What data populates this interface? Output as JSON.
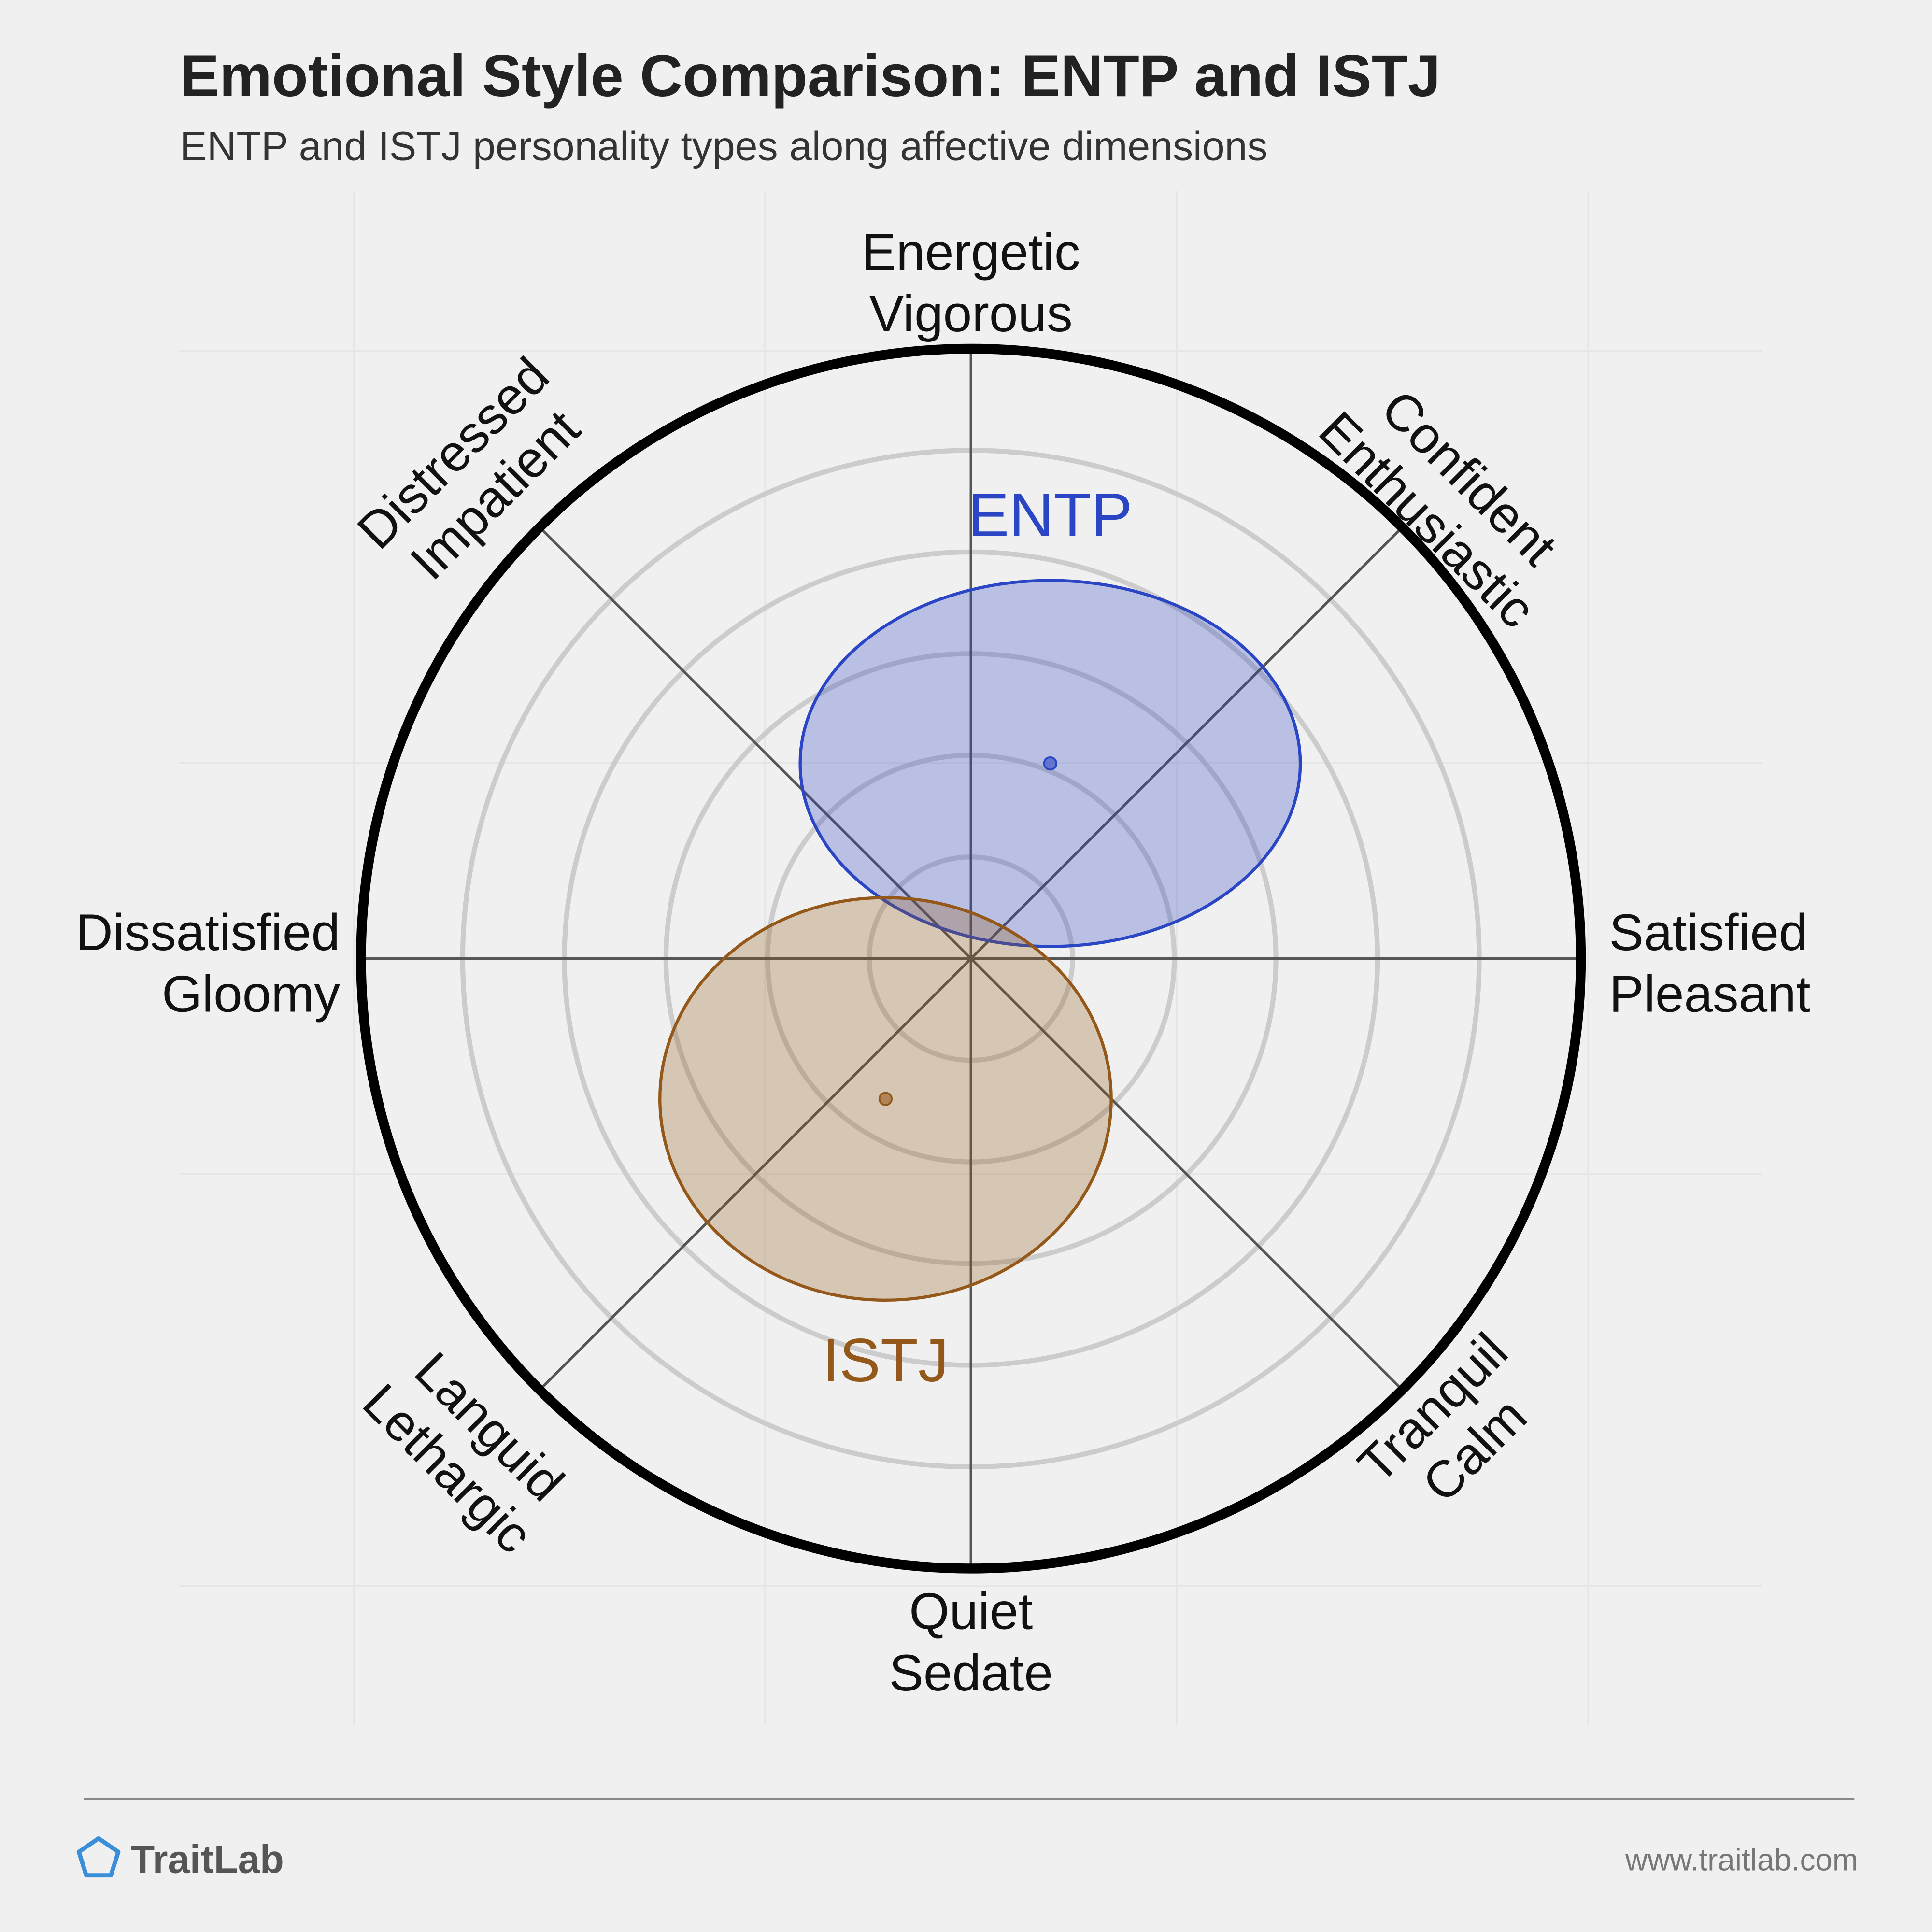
{
  "chart_data": {
    "type": "circumplex",
    "title": "Emotional Style Comparison: ENTP and ISTJ",
    "subtitle": "ENTP and ISTJ personality types along affective dimensions",
    "axis_labels": [
      [
        "Energetic",
        "Vigorous"
      ],
      [
        "Confident",
        "Enthusiastic"
      ],
      [
        "Satisfied",
        "Pleasant"
      ],
      [
        "Tranquil",
        "Calm"
      ],
      [
        "Quiet",
        "Sedate"
      ],
      [
        "Languid",
        "Lethargic"
      ],
      [
        "Dissatisfied",
        "Gloomy"
      ],
      [
        "Distressed",
        "Impatient"
      ]
    ],
    "xlim": [
      -1,
      1
    ],
    "ylim": [
      -1,
      1
    ],
    "series": [
      {
        "name": "ENTP",
        "color": "#2a46c4",
        "x": 0.13,
        "y": 0.32,
        "rx": 0.41,
        "ry": 0.3
      },
      {
        "name": "ISTJ",
        "color": "#94591a",
        "x": -0.14,
        "y": -0.23,
        "rx": 0.37,
        "ry": 0.33
      }
    ]
  },
  "footer": {
    "brand": "TraitLab",
    "url": "www.traitlab.com"
  }
}
